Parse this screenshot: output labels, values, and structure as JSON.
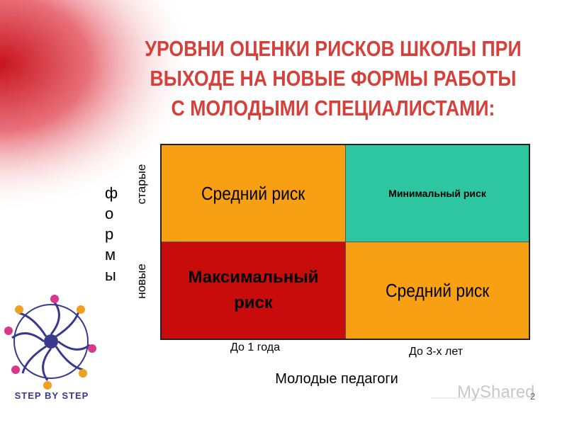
{
  "title": [
    "УРОВНИ ОЦЕНКИ РИСКОВ ШКОЛЫ ПРИ",
    "ВЫХОДЕ НА НОВЫЕ ФОРМЫ РАБОТЫ",
    "С МОЛОДЫМИ СПЕЦИАЛИСТАМИ:"
  ],
  "matrix": {
    "rows": [
      [
        "Средний риск",
        "Минимальный риск"
      ],
      [
        "Максимальный риск",
        "Средний риск"
      ]
    ],
    "row_labels": [
      "старые",
      "новые"
    ],
    "y_label": "формы",
    "column_labels": [
      "До 1 года",
      "До 3-х лет"
    ],
    "x_label": "Молодые педагоги"
  },
  "logo_text": "STEP BY STEP",
  "watermark": "MyShared",
  "page_number": "2"
}
